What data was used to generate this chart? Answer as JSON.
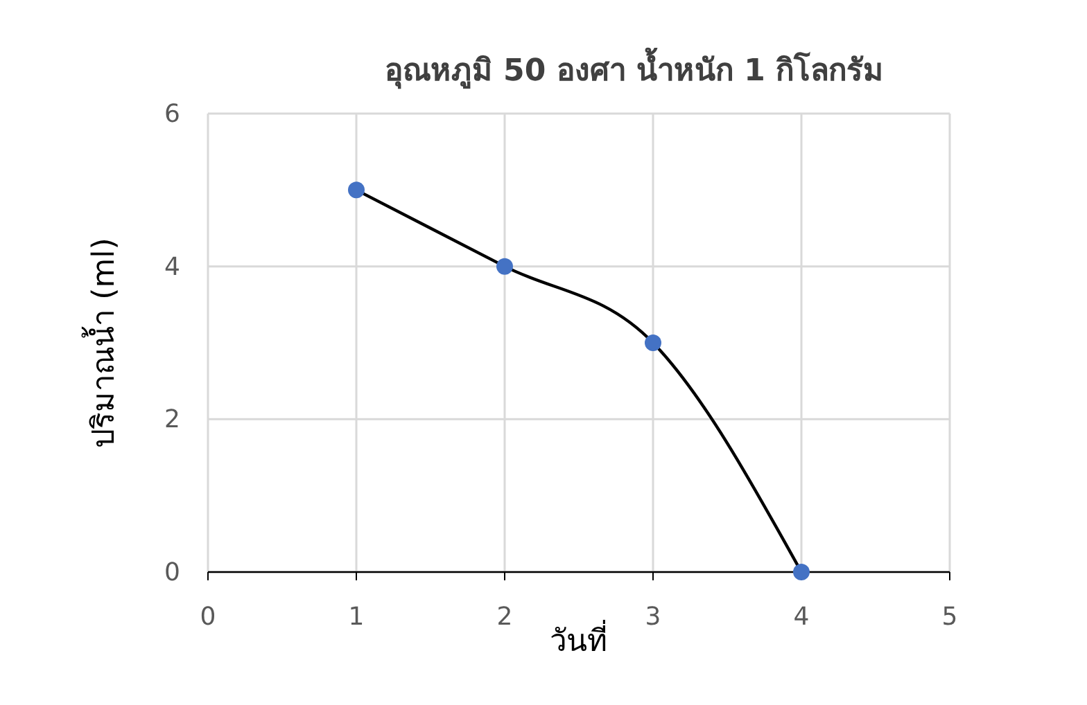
{
  "chart_data": {
    "type": "scatter",
    "title": "อุณหภูมิ 50 องศา น้ำหนัก 1 กิโลกรัม",
    "xlabel": "วันที่",
    "ylabel": "ปริมาณน้ำ (ml)",
    "x": [
      1,
      2,
      3,
      4
    ],
    "series": [
      {
        "type": "line",
        "color": "#000000",
        "values": [
          5,
          4,
          3,
          0
        ],
        "marker": "none"
      },
      {
        "type": "scatter",
        "color": "#4472c4",
        "values": [
          5,
          4,
          3,
          0
        ],
        "marker": "circle"
      }
    ],
    "xlim": [
      0,
      5
    ],
    "xticks": [
      0,
      1,
      2,
      3,
      4,
      5
    ],
    "ylim": [
      0,
      6
    ],
    "yticks": [
      0,
      2,
      4,
      6
    ],
    "grid": true
  }
}
